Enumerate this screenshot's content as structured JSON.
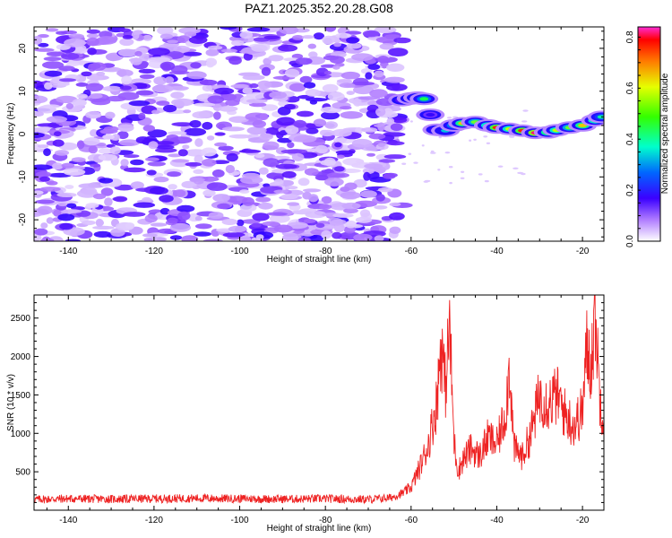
{
  "title": "PAZ1.2025.352.20.28.G08",
  "chart_data": [
    {
      "type": "heatmap",
      "xlabel": "Height of straight line (km)",
      "ylabel": "Frequency (Hz)",
      "xlim": [
        -148,
        -15
      ],
      "ylim": [
        -25,
        25
      ],
      "xticks": [
        -140,
        -120,
        -100,
        -80,
        -60,
        -40,
        -20
      ],
      "yticks": [
        -20,
        -10,
        0,
        10,
        20
      ],
      "colorbar": {
        "label": "Normalized spectral amplitude",
        "range": [
          0.0,
          0.84
        ],
        "ticks": [
          0.0,
          0.2,
          0.4,
          0.6,
          0.8
        ]
      },
      "noise_region": {
        "x_from": -148,
        "x_to": -62,
        "level": "0.0-0.25"
      },
      "ridge": [
        {
          "x": -62.0,
          "y": 7.9,
          "amp": 0.3
        },
        {
          "x": -60.0,
          "y": 8.3,
          "amp": 0.6
        },
        {
          "x": -58.5,
          "y": 8.5,
          "amp": 0.84
        },
        {
          "x": -57.0,
          "y": 8.2,
          "amp": 0.5
        },
        {
          "x": -55.5,
          "y": 4.5,
          "amp": 0.25
        },
        {
          "x": -54.0,
          "y": 1.0,
          "amp": 0.35
        },
        {
          "x": -52.0,
          "y": 0.8,
          "amp": 0.4
        },
        {
          "x": -50.0,
          "y": 2.0,
          "amp": 0.5
        },
        {
          "x": -48.0,
          "y": 2.5,
          "amp": 0.65
        },
        {
          "x": -45.0,
          "y": 2.8,
          "amp": 0.55
        },
        {
          "x": -42.0,
          "y": 2.0,
          "amp": 0.6
        },
        {
          "x": -40.0,
          "y": 1.5,
          "amp": 0.75
        },
        {
          "x": -37.0,
          "y": 1.2,
          "amp": 0.6
        },
        {
          "x": -34.0,
          "y": 0.8,
          "amp": 0.75
        },
        {
          "x": -31.0,
          "y": 0.3,
          "amp": 0.8
        },
        {
          "x": -28.0,
          "y": 0.4,
          "amp": 0.65
        },
        {
          "x": -26.0,
          "y": 0.9,
          "amp": 0.6
        },
        {
          "x": -23.0,
          "y": 1.5,
          "amp": 0.55
        },
        {
          "x": -20.0,
          "y": 2.0,
          "amp": 0.65
        },
        {
          "x": -17.0,
          "y": 3.2,
          "amp": 0.6
        },
        {
          "x": -15.5,
          "y": 4.0,
          "amp": 0.45
        }
      ]
    },
    {
      "type": "line",
      "xlabel": "Height of straight line (km)",
      "ylabel": "SNR (10 * v/v)",
      "xlim": [
        -148,
        -15
      ],
      "ylim": [
        0,
        2800
      ],
      "xticks": [
        -140,
        -120,
        -100,
        -80,
        -60,
        -40,
        -20
      ],
      "yticks": [
        500,
        1000,
        1500,
        2000,
        2500
      ],
      "series": [
        {
          "name": "SNR",
          "color": "#ee2222",
          "x": [
            -148,
            -140,
            -130,
            -120,
            -110,
            -100,
            -90,
            -80,
            -70,
            -65,
            -62,
            -60,
            -58,
            -56,
            -54,
            -53,
            -52,
            -51,
            -50,
            -49,
            -48,
            -46,
            -44,
            -42,
            -40,
            -38,
            -37,
            -36,
            -34,
            -32,
            -30,
            -28,
            -26,
            -24,
            -22,
            -20,
            -19,
            -18,
            -17,
            -16,
            -15
          ],
          "y": [
            140,
            150,
            145,
            150,
            155,
            150,
            145,
            150,
            140,
            160,
            220,
            300,
            550,
            850,
            1400,
            2200,
            1600,
            2400,
            900,
            500,
            650,
            800,
            700,
            950,
            850,
            1250,
            1900,
            800,
            700,
            1000,
            1500,
            1400,
            1500,
            1250,
            1100,
            1300,
            2100,
            1900,
            2600,
            1500,
            1200
          ]
        }
      ]
    }
  ]
}
